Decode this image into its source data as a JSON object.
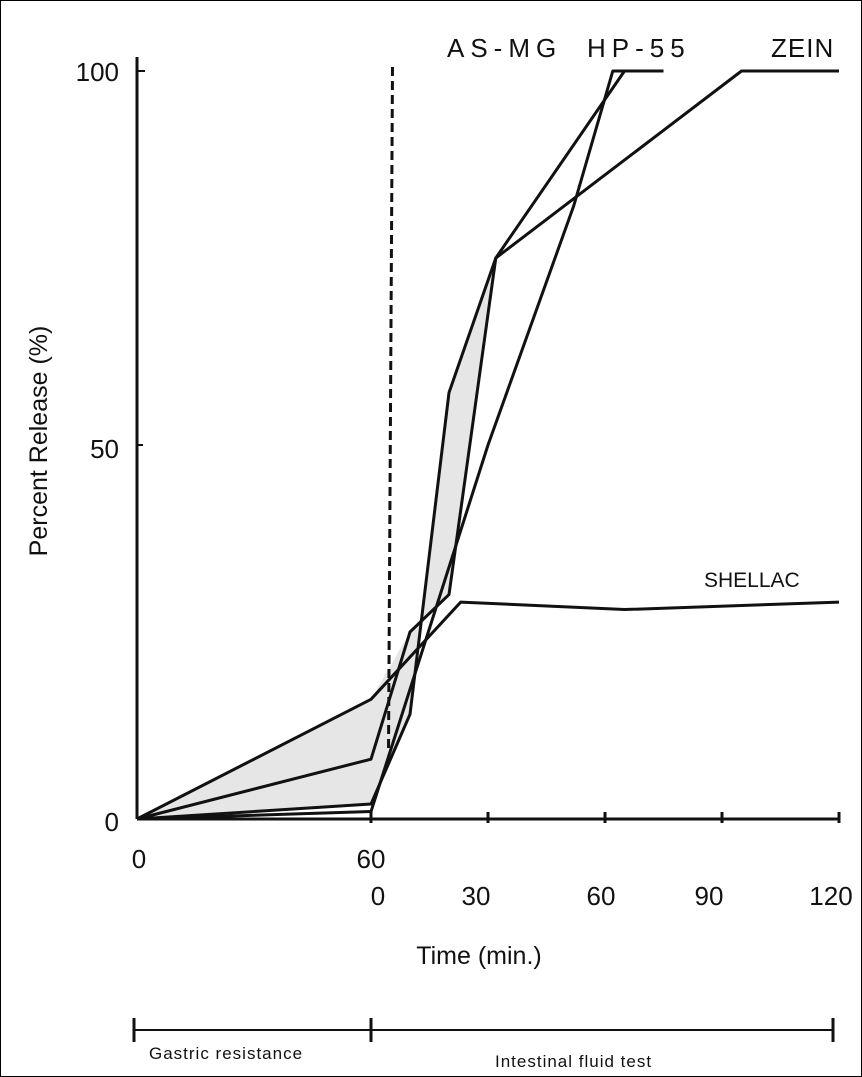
{
  "chart_data": {
    "type": "line",
    "ylabel": "Percent Release (%)",
    "xlabel": "Time (min.)",
    "ylim": [
      0,
      100
    ],
    "y_ticks": [
      "0",
      "50",
      "100"
    ],
    "x_ticks_gastric": [
      "0",
      "60"
    ],
    "x_ticks_intestinal": [
      "0",
      "30",
      "60",
      "90",
      "120"
    ],
    "phases": [
      "Gastric resistance",
      "Intestinal fluid test"
    ],
    "grid": false,
    "series": [
      {
        "name": "AS-MG",
        "points": [
          [
            0,
            0
          ],
          [
            60,
            1
          ],
          [
            90,
            50
          ],
          [
            112,
            82
          ],
          [
            122,
            100
          ],
          [
            132,
            100
          ]
        ]
      },
      {
        "name": "HP-55",
        "points": [
          [
            0,
            0
          ],
          [
            60,
            2
          ],
          [
            70,
            14
          ],
          [
            80,
            57
          ],
          [
            92,
            75
          ],
          [
            125,
            100
          ],
          [
            135,
            100
          ]
        ]
      },
      {
        "name": "ZEIN",
        "points": [
          [
            0,
            0
          ],
          [
            60,
            8
          ],
          [
            70,
            25
          ],
          [
            80,
            30
          ],
          [
            92,
            75
          ],
          [
            155,
            100
          ],
          [
            180,
            100
          ]
        ]
      },
      {
        "name": "SHELLAC",
        "points": [
          [
            0,
            0
          ],
          [
            60,
            16
          ],
          [
            83,
            29
          ],
          [
            125,
            28
          ],
          [
            180,
            29
          ]
        ]
      }
    ],
    "shaded_band": {
      "upper": [
        [
          0,
          0
        ],
        [
          60,
          16
        ],
        [
          70,
          25
        ],
        [
          80,
          30
        ],
        [
          92,
          75
        ],
        [
          100,
          80
        ]
      ],
      "lower": [
        [
          100,
          80
        ],
        [
          92,
          75
        ],
        [
          80,
          57
        ],
        [
          70,
          14
        ],
        [
          60,
          2
        ],
        [
          0,
          0
        ]
      ]
    },
    "vline_x": 65
  }
}
